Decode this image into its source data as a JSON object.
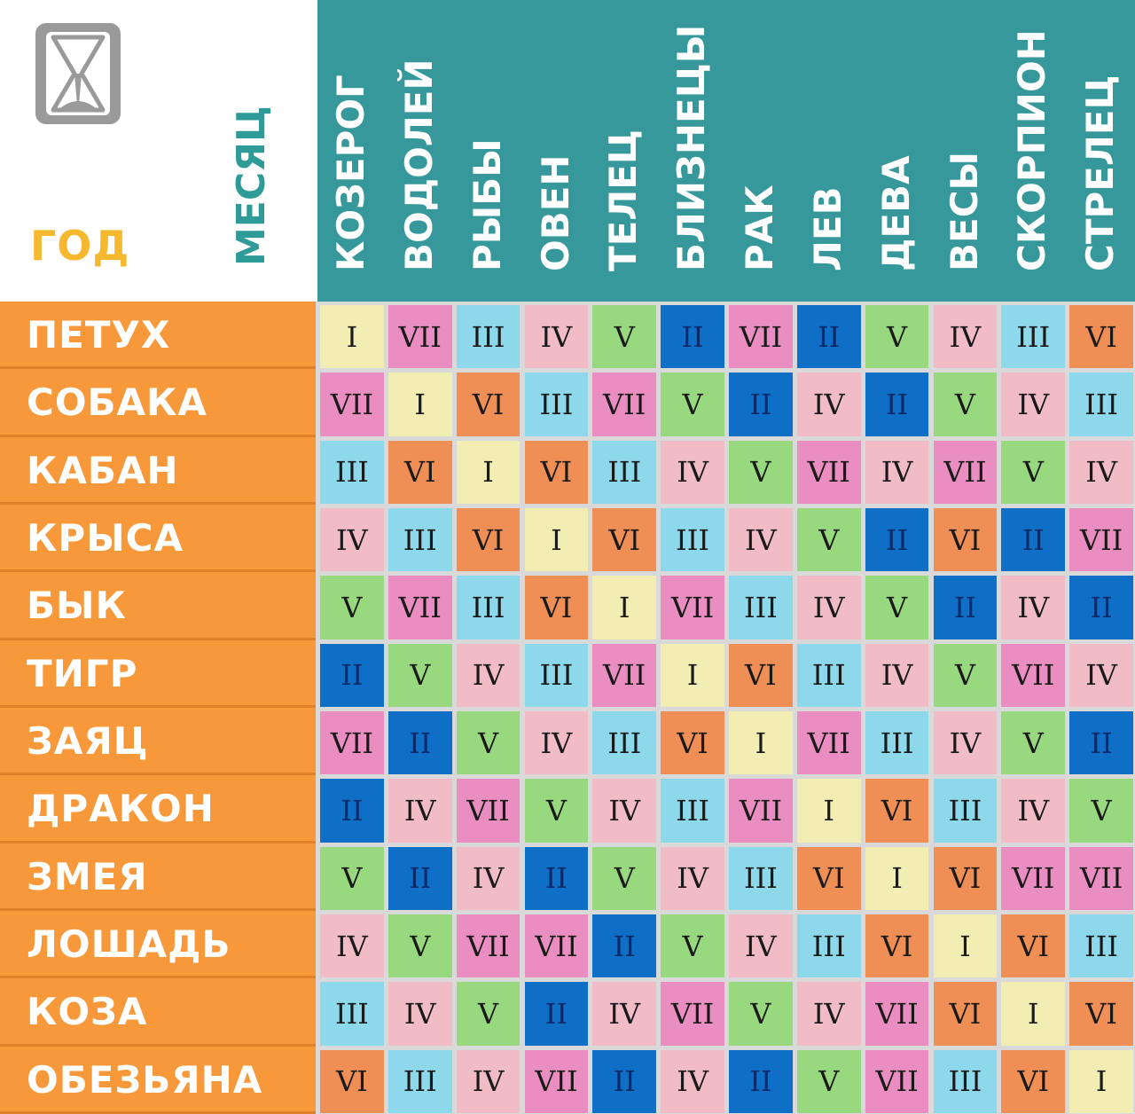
{
  "corner": {
    "year_label": "ГОД",
    "month_label": "МЕСЯЦ",
    "icon": "hourglass-icon"
  },
  "zodiac": [
    "КОЗЕРОГ",
    "ВОДОЛЕЙ",
    "РЫБЫ",
    "ОВЕН",
    "ТЕЛЕЦ",
    "БЛИЗНЕЦЫ",
    "РАК",
    "ЛЕВ",
    "ДЕВА",
    "ВЕСЫ",
    "СКОРПИОН",
    "СТРЕЛЕЦ"
  ],
  "years": [
    "ПЕТУХ",
    "СОБАКА",
    "КАБАН",
    "КРЫСА",
    "БЫК",
    "ТИГР",
    "ЗАЯЦ",
    "ДРАКОН",
    "ЗМЕЯ",
    "ЛОШАДЬ",
    "КОЗА",
    "ОБЕЗЬЯНА"
  ],
  "colors": {
    "I": "#f2eeb3",
    "II": "#0f6fc7",
    "III": "#8dd8ea",
    "IV": "#f1bcc6",
    "V": "#98d87f",
    "VI": "#ef8f55",
    "VII": "#ea8ec2"
  },
  "grid": [
    [
      "I",
      "VII",
      "III",
      "IV",
      "V",
      "II",
      "VII",
      "II",
      "V",
      "IV",
      "III",
      "VI"
    ],
    [
      "VII",
      "I",
      "VI",
      "III",
      "VII",
      "V",
      "II",
      "IV",
      "II",
      "V",
      "IV",
      "III"
    ],
    [
      "III",
      "VI",
      "I",
      "VI",
      "III",
      "IV",
      "V",
      "VII",
      "IV",
      "VII",
      "V",
      "IV"
    ],
    [
      "IV",
      "III",
      "VI",
      "I",
      "VI",
      "III",
      "IV",
      "V",
      "II",
      "VI",
      "II",
      "VII"
    ],
    [
      "V",
      "VII",
      "III",
      "VI",
      "I",
      "VII",
      "III",
      "IV",
      "V",
      "II",
      "IV",
      "II"
    ],
    [
      "II",
      "V",
      "IV",
      "III",
      "VII",
      "I",
      "VI",
      "III",
      "IV",
      "V",
      "VII",
      "IV"
    ],
    [
      "VII",
      "II",
      "V",
      "IV",
      "III",
      "VI",
      "I",
      "VII",
      "III",
      "IV",
      "V",
      "II"
    ],
    [
      "II",
      "IV",
      "VII",
      "V",
      "IV",
      "III",
      "VII",
      "I",
      "VI",
      "III",
      "IV",
      "V"
    ],
    [
      "V",
      "II",
      "IV",
      "II",
      "V",
      "IV",
      "III",
      "VI",
      "I",
      "VI",
      "VII",
      "VII"
    ],
    [
      "IV",
      "V",
      "VII",
      "VII",
      "II",
      "V",
      "IV",
      "III",
      "VI",
      "I",
      "VI",
      "III"
    ],
    [
      "III",
      "IV",
      "V",
      "II",
      "IV",
      "VII",
      "V",
      "IV",
      "VII",
      "VI",
      "I",
      "VI"
    ],
    [
      "VI",
      "III",
      "IV",
      "VII",
      "II",
      "IV",
      "II",
      "V",
      "VII",
      "III",
      "VI",
      "I"
    ]
  ]
}
